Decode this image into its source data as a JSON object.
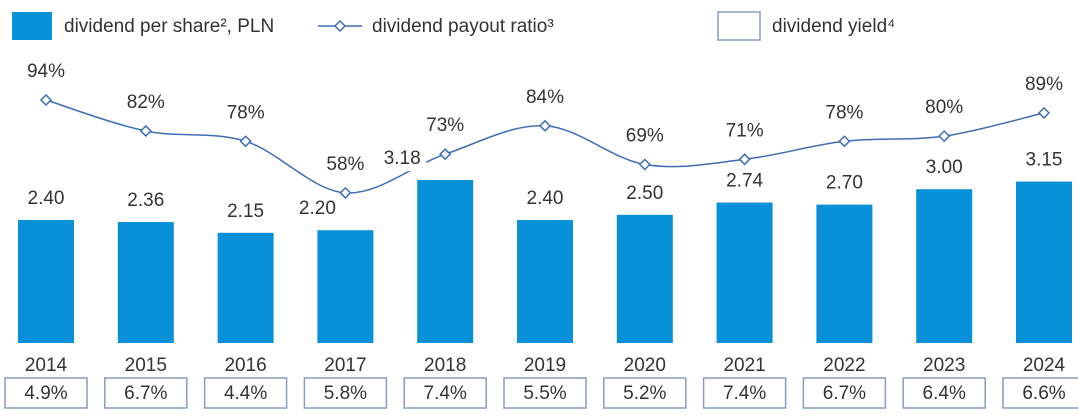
{
  "chart_data": {
    "type": "bar",
    "categories": [
      "2014",
      "2015",
      "2016",
      "2017",
      "2018",
      "2019",
      "2020",
      "2021",
      "2022",
      "2023",
      "2024"
    ],
    "series": [
      {
        "name": "dividend per share², PLN",
        "color": "#0891d8",
        "values": [
          2.4,
          2.36,
          2.15,
          2.2,
          3.18,
          2.4,
          2.5,
          2.74,
          2.7,
          3.0,
          3.15
        ],
        "value_labels": [
          "2.40",
          "2.36",
          "2.15",
          "2.20",
          "3.18",
          "2.40",
          "2.50",
          "2.74",
          "2.70",
          "3.00",
          "3.15"
        ]
      },
      {
        "name": "dividend payout ratio³",
        "type": "line",
        "axis": "y2",
        "color": "#3d6db5",
        "values": [
          94,
          82,
          78,
          58,
          73,
          84,
          69,
          71,
          78,
          80,
          89
        ],
        "value_labels": [
          "94%",
          "82%",
          "78%",
          "58%",
          "73%",
          "84%",
          "69%",
          "71%",
          "78%",
          "80%",
          "89%"
        ]
      },
      {
        "name": "dividend yield⁴",
        "type": "table",
        "color": "#8a9cc0",
        "values": [
          4.9,
          6.7,
          4.4,
          5.8,
          7.4,
          5.5,
          5.2,
          7.4,
          6.7,
          6.4,
          6.6
        ],
        "value_labels": [
          "4.9%",
          "6.7%",
          "4.4%",
          "5.8%",
          "7.4%",
          "5.5%",
          "5.2%",
          "7.4%",
          "6.7%",
          "6.4%",
          "6.6%"
        ]
      }
    ]
  }
}
